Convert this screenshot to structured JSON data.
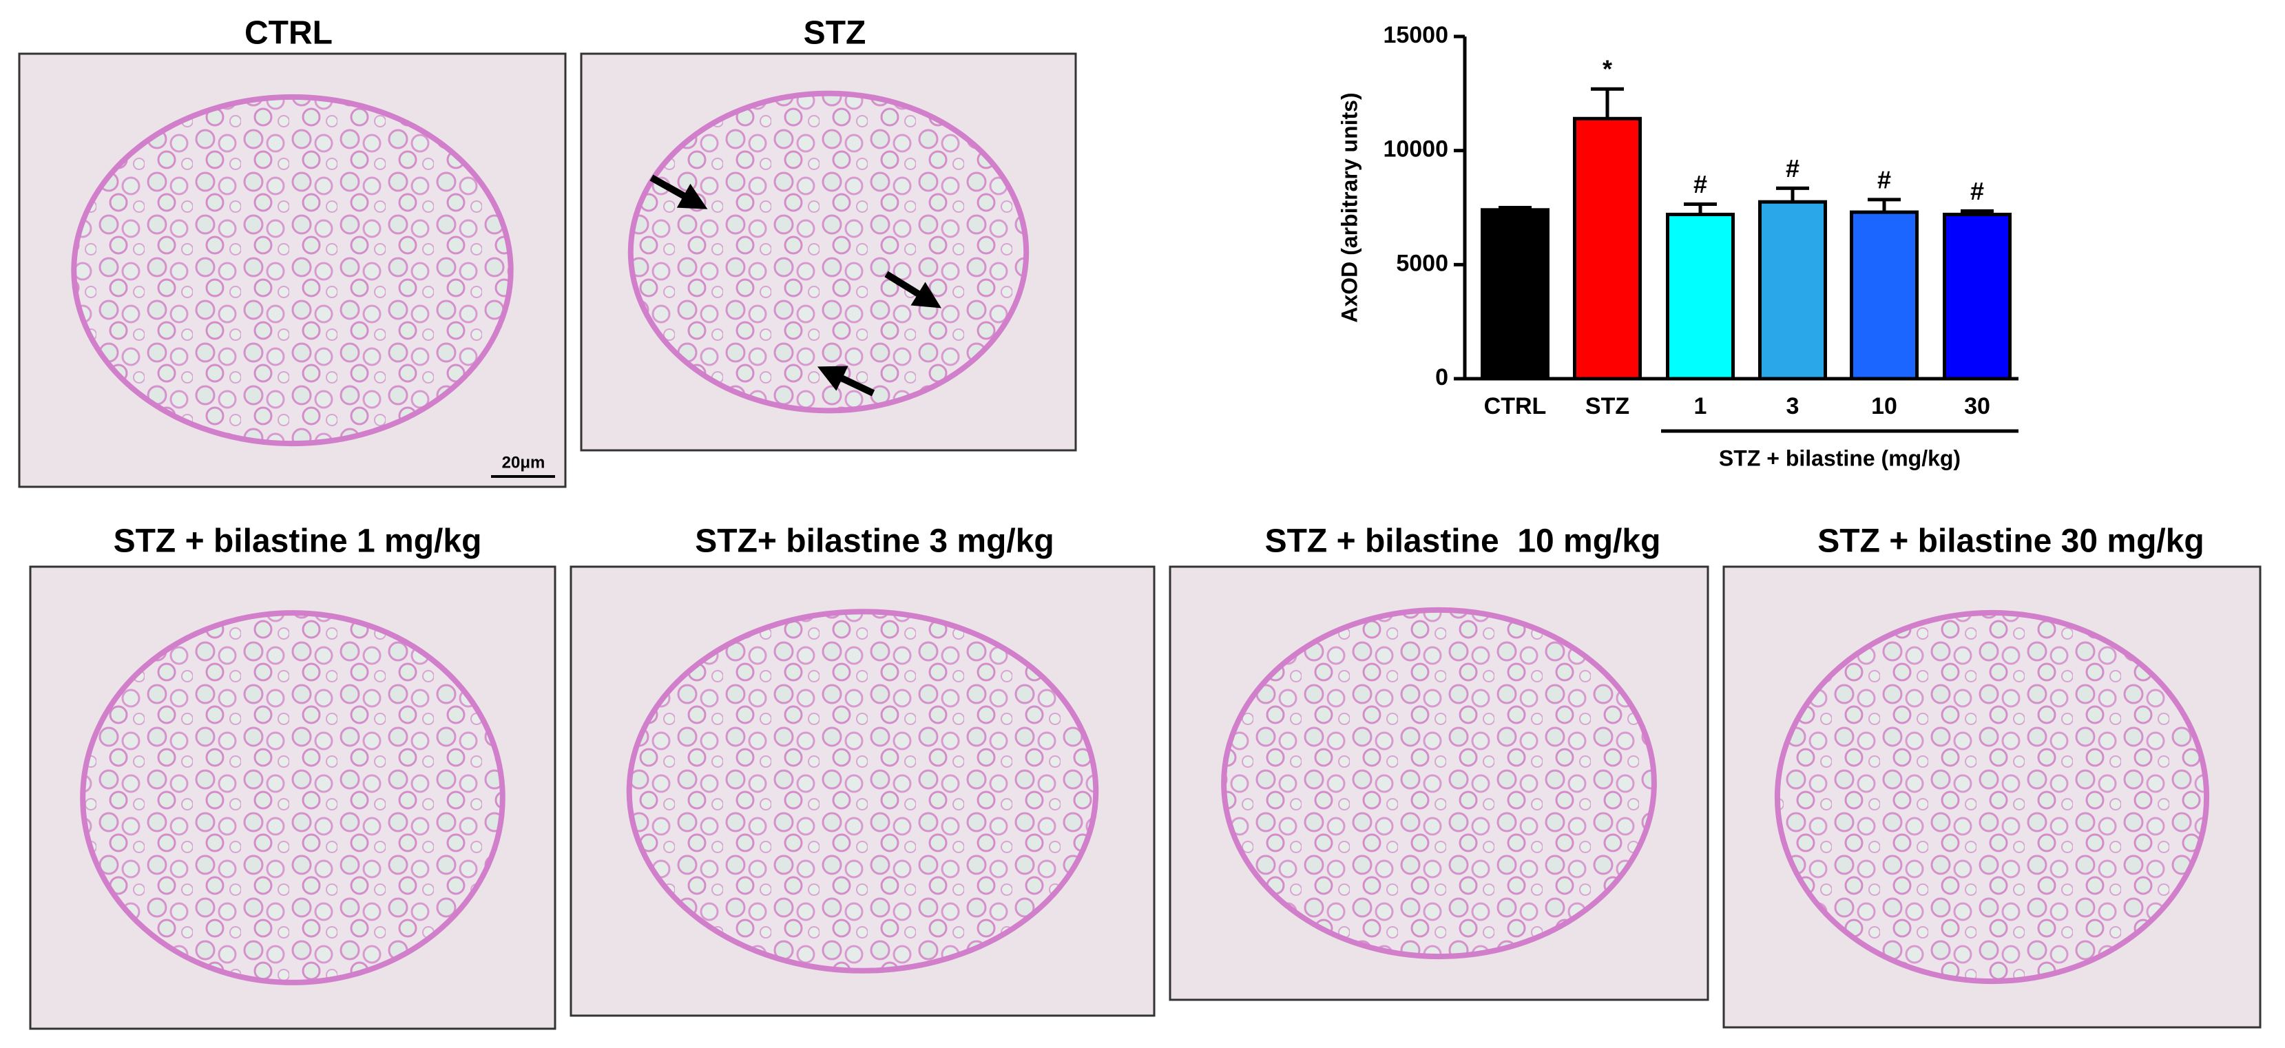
{
  "panels": [
    {
      "title": "CTRL"
    },
    {
      "title": "STZ"
    },
    {
      "title": "STZ + bilastine 1 mg/kg"
    },
    {
      "title": "STZ+ bilastine 3 mg/kg"
    },
    {
      "title": "STZ + bilastine  10 mg/kg"
    },
    {
      "title": "STZ + bilastine 30 mg/kg"
    }
  ],
  "scale_bar_label": "20μm",
  "chart_data": {
    "type": "bar",
    "y_label": "AxOD (arbitrary units)",
    "categories": [
      "CTRL",
      "STZ",
      "1",
      "3",
      "10",
      "30"
    ],
    "values": [
      7400,
      11400,
      7200,
      7750,
      7300,
      7200
    ],
    "errors": [
      100,
      1300,
      450,
      600,
      550,
      150
    ],
    "annotations": [
      null,
      "*",
      "#",
      "#",
      "#",
      "#"
    ],
    "colors": [
      "#000000",
      "#ff0000",
      "#00ffff",
      "#2aa7e8",
      "#1a66ff",
      "#0000ff"
    ],
    "group_label": "STZ + bilastine (mg/kg)",
    "ylim": [
      0,
      15000
    ],
    "yticks": [
      0,
      5000,
      10000,
      15000
    ]
  }
}
